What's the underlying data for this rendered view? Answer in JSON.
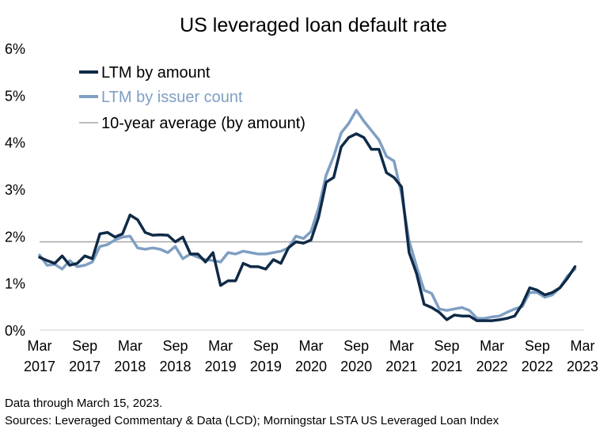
{
  "chart_data": {
    "type": "line",
    "title": "US leveraged loan default rate",
    "xlabel": "",
    "ylabel": "",
    "ylim": [
      0,
      6
    ],
    "yticks": [
      "0%",
      "1%",
      "2%",
      "3%",
      "4%",
      "5%",
      "6%"
    ],
    "xticks": [
      {
        "month": "Mar",
        "year": "2017",
        "x": 0
      },
      {
        "month": "Sep",
        "year": "2017",
        "x": 6
      },
      {
        "month": "Mar",
        "year": "2018",
        "x": 12
      },
      {
        "month": "Sep",
        "year": "2018",
        "x": 18
      },
      {
        "month": "Mar",
        "year": "2019",
        "x": 24
      },
      {
        "month": "Sep",
        "year": "2019",
        "x": 30
      },
      {
        "month": "Mar",
        "year": "2020",
        "x": 36
      },
      {
        "month": "Sep",
        "year": "2020",
        "x": 42
      },
      {
        "month": "Mar",
        "year": "2021",
        "x": 48
      },
      {
        "month": "Sep",
        "year": "2021",
        "x": 54
      },
      {
        "month": "Mar",
        "year": "2022",
        "x": 60
      },
      {
        "month": "Sep",
        "year": "2022",
        "x": 66
      },
      {
        "month": "Mar",
        "year": "2023",
        "x": 72
      }
    ],
    "x_unit": "months since Mar 2017",
    "grid": false,
    "legend_position": "top-left",
    "reference_line": {
      "name": "10-year average (by amount)",
      "value": 1.88,
      "color": "#999999"
    },
    "series": [
      {
        "name": "LTM by amount",
        "color": "#0f2a47",
        "points": [
          [
            0,
            1.55
          ],
          [
            1,
            1.48
          ],
          [
            2,
            1.42
          ],
          [
            3,
            1.58
          ],
          [
            4,
            1.38
          ],
          [
            5,
            1.42
          ],
          [
            6,
            1.58
          ],
          [
            7,
            1.52
          ],
          [
            8,
            2.05
          ],
          [
            9,
            2.08
          ],
          [
            10,
            1.98
          ],
          [
            11,
            2.05
          ],
          [
            12,
            2.45
          ],
          [
            13,
            2.35
          ],
          [
            14,
            2.08
          ],
          [
            15,
            2.02
          ],
          [
            16,
            2.03
          ],
          [
            17,
            2.02
          ],
          [
            18,
            1.88
          ],
          [
            19,
            1.98
          ],
          [
            20,
            1.62
          ],
          [
            21,
            1.62
          ],
          [
            22,
            1.45
          ],
          [
            23,
            1.65
          ],
          [
            24,
            0.95
          ],
          [
            25,
            1.05
          ],
          [
            26,
            1.05
          ],
          [
            27,
            1.42
          ],
          [
            28,
            1.35
          ],
          [
            29,
            1.35
          ],
          [
            30,
            1.3
          ],
          [
            31,
            1.5
          ],
          [
            32,
            1.42
          ],
          [
            33,
            1.75
          ],
          [
            34,
            1.88
          ],
          [
            35,
            1.85
          ],
          [
            36,
            1.92
          ],
          [
            37,
            2.4
          ],
          [
            38,
            3.15
          ],
          [
            39,
            3.25
          ],
          [
            40,
            3.9
          ],
          [
            41,
            4.1
          ],
          [
            42,
            4.18
          ],
          [
            43,
            4.1
          ],
          [
            44,
            3.85
          ],
          [
            45,
            3.85
          ],
          [
            46,
            3.35
          ],
          [
            47,
            3.25
          ],
          [
            48,
            3.05
          ],
          [
            49,
            1.65
          ],
          [
            50,
            1.2
          ],
          [
            51,
            0.55
          ],
          [
            52,
            0.48
          ],
          [
            53,
            0.38
          ],
          [
            54,
            0.22
          ],
          [
            55,
            0.32
          ],
          [
            56,
            0.3
          ],
          [
            57,
            0.3
          ],
          [
            58,
            0.2
          ],
          [
            59,
            0.2
          ],
          [
            60,
            0.2
          ],
          [
            61,
            0.22
          ],
          [
            62,
            0.25
          ],
          [
            63,
            0.3
          ],
          [
            64,
            0.55
          ],
          [
            65,
            0.9
          ],
          [
            66,
            0.85
          ],
          [
            67,
            0.75
          ],
          [
            68,
            0.8
          ],
          [
            69,
            0.9
          ],
          [
            70,
            1.1
          ],
          [
            71,
            1.35
          ]
        ]
      },
      {
        "name": "LTM by issuer count",
        "color": "#7f9fc3",
        "points": [
          [
            0,
            1.6
          ],
          [
            1,
            1.38
          ],
          [
            2,
            1.4
          ],
          [
            3,
            1.3
          ],
          [
            4,
            1.48
          ],
          [
            5,
            1.35
          ],
          [
            6,
            1.38
          ],
          [
            7,
            1.45
          ],
          [
            8,
            1.78
          ],
          [
            9,
            1.82
          ],
          [
            10,
            1.92
          ],
          [
            11,
            1.98
          ],
          [
            12,
            2.0
          ],
          [
            13,
            1.75
          ],
          [
            14,
            1.72
          ],
          [
            15,
            1.75
          ],
          [
            16,
            1.72
          ],
          [
            17,
            1.65
          ],
          [
            18,
            1.78
          ],
          [
            19,
            1.52
          ],
          [
            20,
            1.62
          ],
          [
            21,
            1.55
          ],
          [
            22,
            1.5
          ],
          [
            23,
            1.48
          ],
          [
            24,
            1.45
          ],
          [
            25,
            1.65
          ],
          [
            26,
            1.62
          ],
          [
            27,
            1.68
          ],
          [
            28,
            1.65
          ],
          [
            29,
            1.62
          ],
          [
            30,
            1.62
          ],
          [
            31,
            1.65
          ],
          [
            32,
            1.68
          ],
          [
            33,
            1.75
          ],
          [
            34,
            2.0
          ],
          [
            35,
            1.95
          ],
          [
            36,
            2.1
          ],
          [
            37,
            2.6
          ],
          [
            38,
            3.3
          ],
          [
            39,
            3.7
          ],
          [
            40,
            4.2
          ],
          [
            41,
            4.4
          ],
          [
            42,
            4.68
          ],
          [
            43,
            4.45
          ],
          [
            44,
            4.25
          ],
          [
            45,
            4.05
          ],
          [
            46,
            3.7
          ],
          [
            47,
            3.6
          ],
          [
            48,
            2.9
          ],
          [
            49,
            1.9
          ],
          [
            50,
            1.35
          ],
          [
            51,
            0.85
          ],
          [
            52,
            0.78
          ],
          [
            53,
            0.45
          ],
          [
            54,
            0.42
          ],
          [
            55,
            0.45
          ],
          [
            56,
            0.48
          ],
          [
            57,
            0.42
          ],
          [
            58,
            0.25
          ],
          [
            59,
            0.25
          ],
          [
            60,
            0.28
          ],
          [
            61,
            0.3
          ],
          [
            62,
            0.38
          ],
          [
            63,
            0.45
          ],
          [
            64,
            0.5
          ],
          [
            65,
            0.8
          ],
          [
            66,
            0.8
          ],
          [
            67,
            0.7
          ],
          [
            68,
            0.75
          ],
          [
            69,
            0.9
          ],
          [
            70,
            1.15
          ],
          [
            71,
            1.3
          ]
        ]
      }
    ]
  },
  "notes": {
    "line1": "Data through March 15, 2023.",
    "line2": "Sources: Leveraged Commentary & Data (LCD); Morningstar LSTA US Leveraged Loan Index"
  }
}
